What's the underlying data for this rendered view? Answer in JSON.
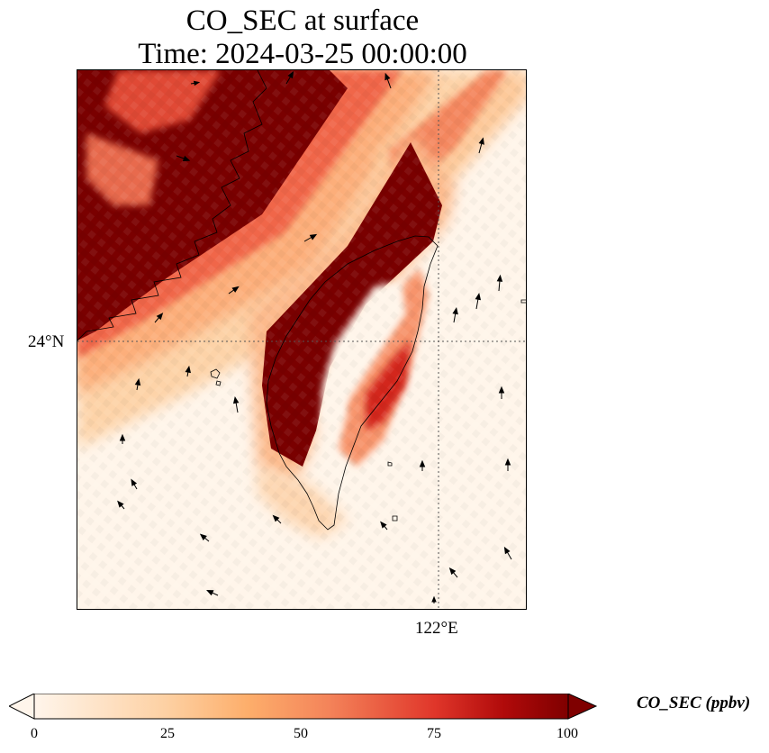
{
  "title": {
    "line1": "CO_SEC at surface",
    "line2": "Time: 2024-03-25 00:00:00"
  },
  "map": {
    "lat_gridline_label": "24°N",
    "lon_gridline_label": "122°E",
    "field": "CO_SEC",
    "vectors": "wind-arrows"
  },
  "colorbar": {
    "label": "CO_SEC (ppbv)",
    "ticks": [
      "0",
      "25",
      "50",
      "75",
      "100"
    ],
    "min": 0,
    "max": 100,
    "colors": [
      "#fff5eb",
      "#fdd0a2",
      "#fdae6b",
      "#f16913",
      "#d94801",
      "#a50f15",
      "#7f0000"
    ],
    "extend": "both"
  }
}
